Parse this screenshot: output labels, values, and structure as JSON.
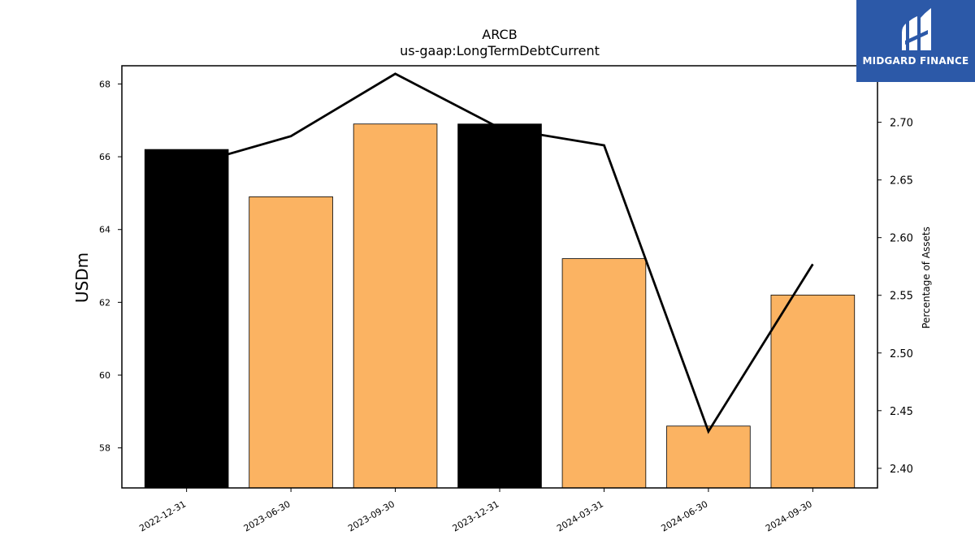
{
  "chart_data": {
    "type": "bar",
    "title": "ARCB",
    "subtitle": "us-gaap:LongTermDebtCurrent",
    "categories": [
      "2022-12-31",
      "2023-06-30",
      "2023-09-30",
      "2023-12-31",
      "2024-03-31",
      "2024-06-30",
      "2024-09-30"
    ],
    "series": [
      {
        "type": "bar",
        "axis": "left",
        "values": [
          66.2,
          64.9,
          66.9,
          66.9,
          63.2,
          58.6,
          62.2
        ],
        "colors": [
          "#000000",
          "#fbb362",
          "#fbb362",
          "#000000",
          "#fbb362",
          "#fbb362",
          "#fbb362"
        ]
      },
      {
        "type": "line",
        "axis": "right",
        "values": [
          2.662,
          2.688,
          2.742,
          2.695,
          2.68,
          2.432,
          2.577
        ],
        "color": "#000000"
      }
    ],
    "ylabel": "USDm",
    "ylabel_right": "Percentage of Assets",
    "ylim": [
      56.9,
      68.5
    ],
    "ylim_right": [
      2.383,
      2.749
    ],
    "yticks": [
      58,
      60,
      62,
      64,
      66,
      68
    ],
    "yticks_right": [
      2.4,
      2.45,
      2.5,
      2.55,
      2.6,
      2.65,
      2.7
    ],
    "grid": false,
    "legend": "none"
  },
  "logo": {
    "text": "MIDGARD FINANCE",
    "background": "#2c59a8"
  }
}
